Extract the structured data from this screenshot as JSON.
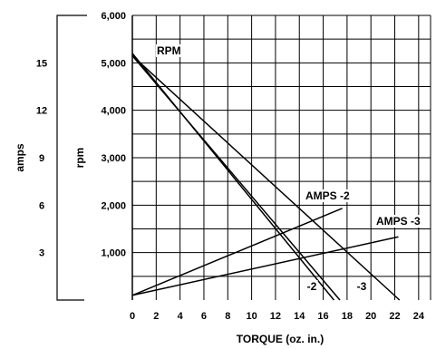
{
  "chart_data": {
    "type": "line",
    "title": "",
    "xlabel": "TORQUE (oz. in.)",
    "x_ticks": [
      "0",
      "2",
      "4",
      "6",
      "8",
      "10",
      "12",
      "14",
      "16",
      "18",
      "20",
      "22",
      "24"
    ],
    "xlim": [
      0,
      25
    ],
    "y_axes": [
      {
        "label": "rpm",
        "ticks": [
          "",
          "1,000",
          "2,000",
          "3,000",
          "4,000",
          "5,000",
          "6,000"
        ],
        "ylim": [
          0,
          6000
        ]
      },
      {
        "label": "amps",
        "ticks": [
          "",
          "3",
          "6",
          "9",
          "12",
          "15",
          ""
        ],
        "ylim": [
          0,
          18
        ]
      }
    ],
    "grid": true,
    "series": [
      {
        "name": "RPM",
        "label": "RPM",
        "axis": "rpm",
        "x": [
          0,
          16.9
        ],
        "y": [
          5200,
          0
        ]
      },
      {
        "name": "",
        "label": "-2",
        "axis": "rpm",
        "x": [
          0,
          17.4
        ],
        "y": [
          5150,
          0
        ]
      },
      {
        "name": "",
        "label": "-3",
        "axis": "rpm",
        "x": [
          0,
          22.4
        ],
        "y": [
          5150,
          0
        ]
      },
      {
        "name": "AMPS -2",
        "label": "AMPS -2",
        "axis": "amps",
        "x": [
          0,
          17.6
        ],
        "y": [
          0.3,
          5.8
        ]
      },
      {
        "name": "AMPS -3",
        "label": "AMPS -3",
        "axis": "amps",
        "x": [
          0,
          22.3
        ],
        "y": [
          0.3,
          4.0
        ]
      }
    ]
  }
}
